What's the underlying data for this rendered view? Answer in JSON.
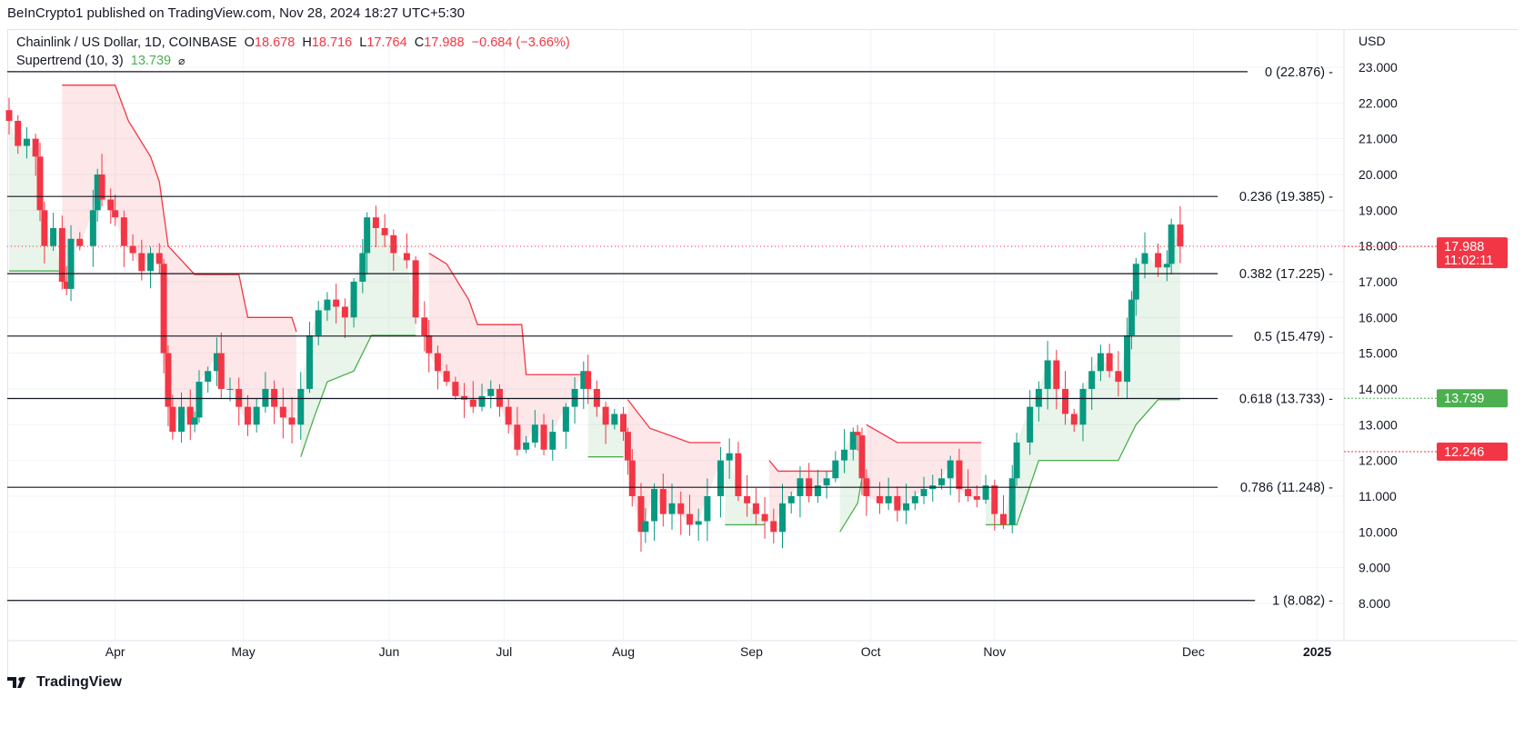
{
  "header": {
    "published": "BeInCrypto1 published on TradingView.com, Nov 28, 2024 18:27 UTC+5:30"
  },
  "legend": {
    "symbol": "Chainlink / US Dollar, 1D, COINBASE",
    "o_label": "O",
    "o": "18.678",
    "h_label": "H",
    "h": "18.716",
    "l_label": "L",
    "l": "17.764",
    "c_label": "C",
    "c": "17.988",
    "change": "−0.684 (−3.66%)",
    "indicator": "Supertrend (10, 3)",
    "indicator_value": "13.739",
    "indicator_icon": "hidden-eye-icon"
  },
  "currency": "USD",
  "footer": {
    "brand": "TradingView"
  },
  "colors": {
    "up": "#089981",
    "down": "#f23645",
    "st_up": "#4caf50",
    "st_down": "#f23645"
  },
  "chart_data": {
    "type": "candlestick",
    "title": "Chainlink / US Dollar, 1D, COINBASE",
    "ylim": [
      7.6,
      23.5
    ],
    "y_ticks": [
      "8.000",
      "9.000",
      "10.000",
      "11.000",
      "12.000",
      "13.000",
      "14.000",
      "15.000",
      "16.000",
      "17.000",
      "18.000",
      "19.000",
      "20.000",
      "21.000",
      "22.000",
      "23.000"
    ],
    "x_ticks": [
      {
        "label": "Apr",
        "day": 24
      },
      {
        "label": "May",
        "day": 53
      },
      {
        "label": "Jun",
        "day": 86
      },
      {
        "label": "Jul",
        "day": 112
      },
      {
        "label": "Aug",
        "day": 139
      },
      {
        "label": "Sep",
        "day": 168
      },
      {
        "label": "Oct",
        "day": 195
      },
      {
        "label": "Nov",
        "day": 223
      },
      {
        "label": "Dec",
        "day": 268
      },
      {
        "label": "2025",
        "day": 296
      }
    ],
    "x_unit": "days since Mar 8, 2024",
    "closes": [
      [
        0,
        21.5
      ],
      [
        2,
        20.8
      ],
      [
        4,
        21.0
      ],
      [
        6,
        20.5
      ],
      [
        7,
        19.0
      ],
      [
        8,
        18.0
      ],
      [
        10,
        18.5
      ],
      [
        12,
        17.0
      ],
      [
        13,
        16.8
      ],
      [
        14,
        18.2
      ],
      [
        16,
        18.0
      ],
      [
        19,
        19.0
      ],
      [
        20,
        20.0
      ],
      [
        21,
        19.3
      ],
      [
        23,
        19.0
      ],
      [
        24,
        18.8
      ],
      [
        26,
        18.0
      ],
      [
        28,
        17.8
      ],
      [
        30,
        17.3
      ],
      [
        32,
        17.8
      ],
      [
        34,
        17.5
      ],
      [
        35,
        15.0
      ],
      [
        36,
        13.5
      ],
      [
        37,
        12.8
      ],
      [
        39,
        13.5
      ],
      [
        41,
        13.0
      ],
      [
        42,
        13.2
      ],
      [
        43,
        14.2
      ],
      [
        45,
        14.5
      ],
      [
        47,
        15.0
      ],
      [
        48,
        14.0
      ],
      [
        50,
        14.0
      ],
      [
        52,
        13.5
      ],
      [
        54,
        13.0
      ],
      [
        56,
        13.5
      ],
      [
        58,
        14.0
      ],
      [
        60,
        13.5
      ],
      [
        62,
        13.2
      ],
      [
        64,
        13.0
      ],
      [
        66,
        14.0
      ],
      [
        68,
        15.5
      ],
      [
        70,
        16.2
      ],
      [
        72,
        16.5
      ],
      [
        74,
        16.3
      ],
      [
        76,
        16.0
      ],
      [
        78,
        17.0
      ],
      [
        80,
        17.8
      ],
      [
        81,
        18.8
      ],
      [
        83,
        18.5
      ],
      [
        85,
        18.3
      ],
      [
        87,
        17.8
      ],
      [
        90,
        17.6
      ],
      [
        92,
        16.0
      ],
      [
        94,
        15.5
      ],
      [
        95,
        15.0
      ],
      [
        97,
        14.5
      ],
      [
        99,
        14.2
      ],
      [
        101,
        13.8
      ],
      [
        103,
        13.7
      ],
      [
        105,
        13.5
      ],
      [
        107,
        13.8
      ],
      [
        109,
        14.0
      ],
      [
        111,
        13.5
      ],
      [
        113,
        13.0
      ],
      [
        115,
        12.3
      ],
      [
        117,
        12.5
      ],
      [
        119,
        13.0
      ],
      [
        121,
        12.3
      ],
      [
        123,
        12.8
      ],
      [
        126,
        13.5
      ],
      [
        128,
        14.0
      ],
      [
        130,
        14.5
      ],
      [
        131,
        14.0
      ],
      [
        133,
        13.5
      ],
      [
        135,
        13.0
      ],
      [
        137,
        13.3
      ],
      [
        139,
        12.8
      ],
      [
        140,
        12.0
      ],
      [
        141,
        11.0
      ],
      [
        143,
        10.0
      ],
      [
        144,
        10.3
      ],
      [
        146,
        11.2
      ],
      [
        148,
        10.5
      ],
      [
        150,
        10.8
      ],
      [
        152,
        10.5
      ],
      [
        154,
        10.2
      ],
      [
        156,
        10.3
      ],
      [
        158,
        11.0
      ],
      [
        161,
        12.0
      ],
      [
        163,
        12.2
      ],
      [
        165,
        11.0
      ],
      [
        167,
        10.8
      ],
      [
        169,
        10.5
      ],
      [
        171,
        10.3
      ],
      [
        173,
        10.0
      ],
      [
        175,
        10.8
      ],
      [
        177,
        11.0
      ],
      [
        179,
        11.5
      ],
      [
        181,
        11.0
      ],
      [
        183,
        11.3
      ],
      [
        185,
        11.5
      ],
      [
        187,
        12.0
      ],
      [
        189,
        12.3
      ],
      [
        191,
        12.8
      ],
      [
        192,
        12.7
      ],
      [
        193,
        11.5
      ],
      [
        194,
        11.0
      ],
      [
        197,
        10.8
      ],
      [
        199,
        11.0
      ],
      [
        201,
        10.6
      ],
      [
        203,
        10.8
      ],
      [
        205,
        11.0
      ],
      [
        207,
        11.2
      ],
      [
        209,
        11.3
      ],
      [
        211,
        11.5
      ],
      [
        213,
        12.0
      ],
      [
        215,
        11.2
      ],
      [
        217,
        11.0
      ],
      [
        219,
        10.9
      ],
      [
        221,
        11.3
      ],
      [
        223,
        10.5
      ],
      [
        225,
        10.2
      ],
      [
        227,
        11.5
      ],
      [
        228,
        12.5
      ],
      [
        231,
        13.5
      ],
      [
        233,
        14.0
      ],
      [
        235,
        14.8
      ],
      [
        237,
        14.0
      ],
      [
        239,
        13.3
      ],
      [
        241,
        13.0
      ],
      [
        243,
        14.0
      ],
      [
        245,
        14.5
      ],
      [
        247,
        15.0
      ],
      [
        249,
        14.5
      ],
      [
        251,
        14.2
      ],
      [
        253,
        15.5
      ],
      [
        254,
        16.5
      ],
      [
        255,
        17.5
      ],
      [
        257,
        17.8
      ],
      [
        260,
        17.4
      ],
      [
        262,
        17.5
      ],
      [
        263,
        18.6
      ],
      [
        265,
        17.988
      ]
    ],
    "supertrend": [
      {
        "trend": "up",
        "points": [
          [
            0,
            17.3
          ],
          [
            12,
            17.3
          ]
        ]
      },
      {
        "trend": "down",
        "points": [
          [
            12,
            22.5
          ],
          [
            24,
            22.5
          ],
          [
            27,
            21.5
          ],
          [
            32,
            20.5
          ],
          [
            34,
            19.8
          ],
          [
            36,
            18.0
          ],
          [
            42,
            17.2
          ],
          [
            52,
            17.2
          ],
          [
            54,
            16.0
          ],
          [
            64,
            16.0
          ],
          [
            65,
            15.6
          ]
        ]
      },
      {
        "trend": "up",
        "points": [
          [
            66,
            12.1
          ],
          [
            69,
            13.2
          ],
          [
            72,
            14.2
          ],
          [
            78,
            14.5
          ],
          [
            82,
            15.5
          ],
          [
            92,
            15.5
          ]
        ]
      },
      {
        "trend": "down",
        "points": [
          [
            95,
            17.8
          ],
          [
            99,
            17.5
          ],
          [
            104,
            16.5
          ],
          [
            106,
            15.8
          ],
          [
            116,
            15.8
          ],
          [
            117,
            14.4
          ],
          [
            130,
            14.4
          ]
        ]
      },
      {
        "trend": "up",
        "points": [
          [
            131,
            12.1
          ],
          [
            139,
            12.1
          ]
        ]
      },
      {
        "trend": "down",
        "points": [
          [
            140,
            13.7
          ],
          [
            145,
            12.9
          ],
          [
            154,
            12.5
          ],
          [
            161,
            12.5
          ]
        ]
      },
      {
        "trend": "up",
        "points": [
          [
            162,
            10.2
          ],
          [
            171,
            10.2
          ]
        ]
      },
      {
        "trend": "down",
        "points": [
          [
            172,
            12.0
          ],
          [
            174,
            11.7
          ],
          [
            187,
            11.7
          ]
        ]
      },
      {
        "trend": "up",
        "points": [
          [
            188,
            10.0
          ],
          [
            192,
            10.8
          ],
          [
            193,
            11.5
          ]
        ]
      },
      {
        "trend": "down",
        "points": [
          [
            194,
            13.0
          ],
          [
            201,
            12.5
          ],
          [
            220,
            12.5
          ]
        ]
      },
      {
        "trend": "up",
        "points": [
          [
            221,
            10.2
          ],
          [
            228,
            10.2
          ],
          [
            233,
            12.0
          ],
          [
            251,
            12.0
          ],
          [
            255,
            13.0
          ],
          [
            260,
            13.7
          ],
          [
            265,
            13.7
          ]
        ]
      }
    ],
    "fib_levels": [
      {
        "ratio": "0",
        "value": 22.876,
        "label": "0 (22.876)"
      },
      {
        "ratio": "0.236",
        "value": 19.385,
        "label": "0.236 (19.385)"
      },
      {
        "ratio": "0.382",
        "value": 17.225,
        "label": "0.382 (17.225)"
      },
      {
        "ratio": "0.5",
        "value": 15.479,
        "label": "0.5 (15.479)"
      },
      {
        "ratio": "0.618",
        "value": 13.733,
        "label": "0.618 (13.733)"
      },
      {
        "ratio": "0.786",
        "value": 11.248,
        "label": "0.786 (11.248)"
      },
      {
        "ratio": "1",
        "value": 8.082,
        "label": "1 (8.082)"
      }
    ],
    "price_tags": [
      {
        "name": "last-price",
        "value": 17.988,
        "label": "17.988",
        "sub": "11:02:11",
        "color": "#f23645"
      },
      {
        "name": "supertrend-value",
        "value": 13.739,
        "label": "13.739",
        "color": "#4caf50"
      },
      {
        "name": "extra-price",
        "value": 12.246,
        "label": "12.246",
        "color": "#f23645"
      }
    ],
    "last_price": 17.988
  }
}
